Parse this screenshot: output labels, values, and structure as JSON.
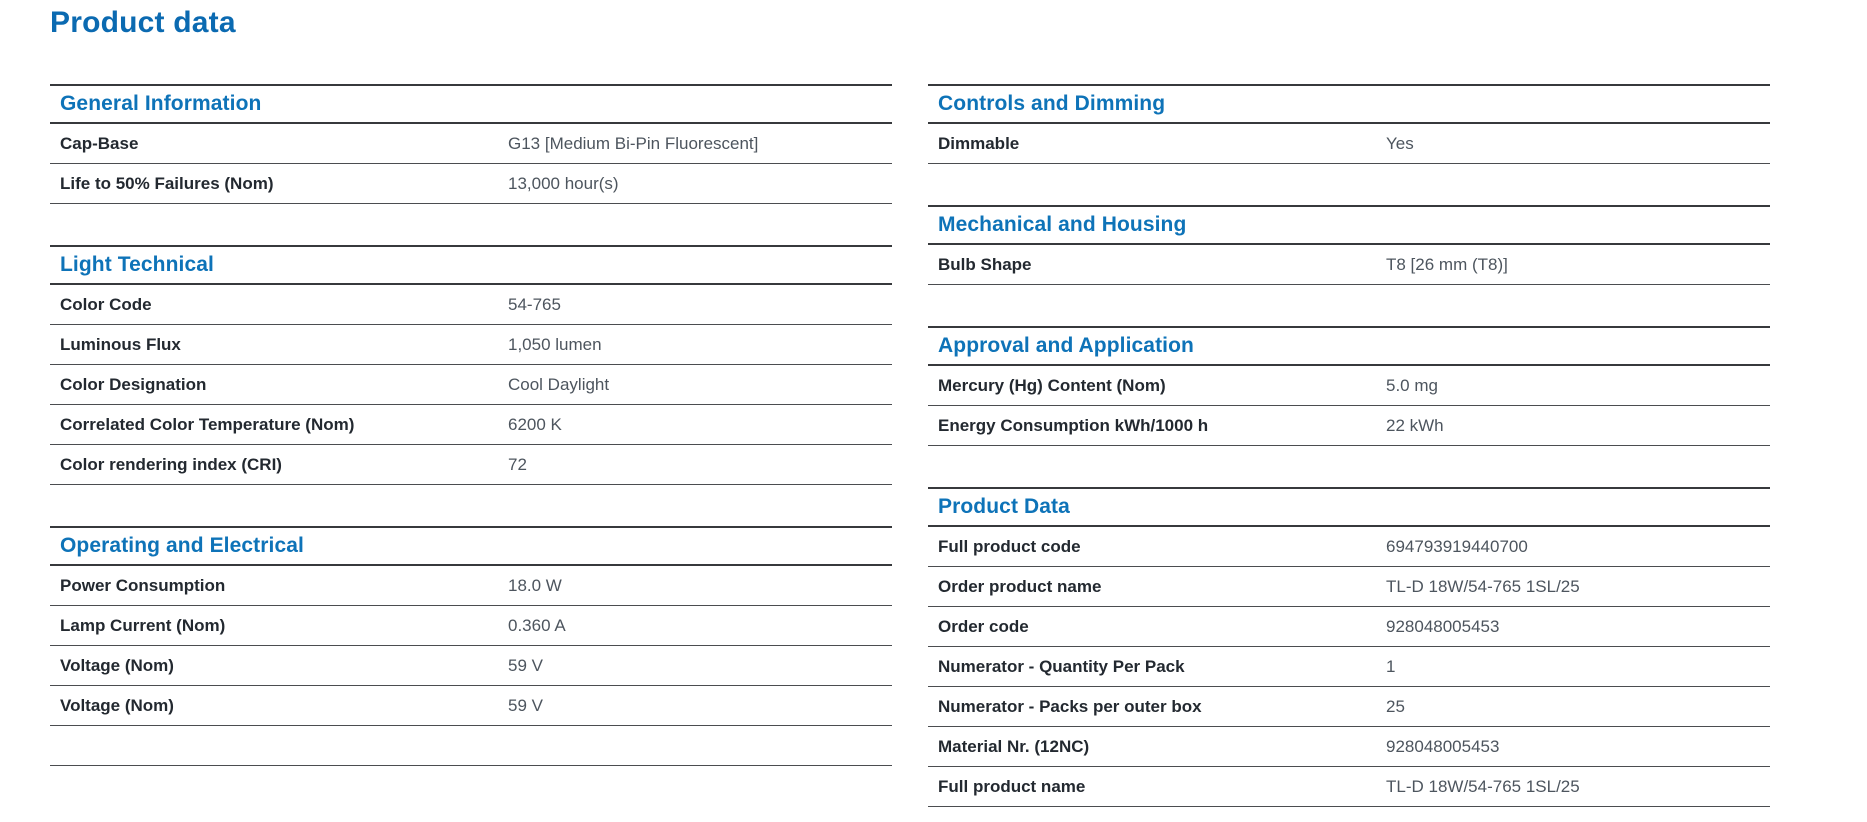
{
  "page_title": "Product data",
  "colors": {
    "title_blue": "#0b6ab1",
    "heading_blue": "#0e73b8",
    "label_dark": "#232930",
    "value_gray": "#4d555e",
    "section_line": "#37393c",
    "row_line": "#4b4d50"
  },
  "columns": [
    {
      "name": "left",
      "sections": [
        {
          "heading": "General Information",
          "rows": [
            {
              "label": "Cap-Base",
              "value": "G13 [Medium Bi-Pin Fluorescent]"
            },
            {
              "label": "Life to 50% Failures (Nom)",
              "value": "13,000 hour(s)"
            }
          ]
        },
        {
          "heading": "Light Technical",
          "rows": [
            {
              "label": "Color Code",
              "value": "54-765"
            },
            {
              "label": "Luminous Flux",
              "value": "1,050 lumen"
            },
            {
              "label": "Color Designation",
              "value": "Cool Daylight"
            },
            {
              "label": "Correlated Color Temperature (Nom)",
              "value": "6200 K"
            },
            {
              "label": "Color rendering index (CRI)",
              "value": "72"
            }
          ]
        },
        {
          "heading": "Operating and Electrical",
          "rows": [
            {
              "label": "Power Consumption",
              "value": "18.0 W"
            },
            {
              "label": "Lamp Current (Nom)",
              "value": "0.360 A"
            },
            {
              "label": "Voltage (Nom)",
              "value": "59 V"
            },
            {
              "label": "Voltage (Nom)",
              "value": "59 V"
            },
            {
              "label": "",
              "value": ""
            }
          ]
        }
      ]
    },
    {
      "name": "right",
      "sections": [
        {
          "heading": "Controls and Dimming",
          "rows": [
            {
              "label": "Dimmable",
              "value": "Yes"
            }
          ]
        },
        {
          "heading": "Mechanical and Housing",
          "rows": [
            {
              "label": "Bulb Shape",
              "value": "T8 [26 mm (T8)]"
            }
          ]
        },
        {
          "heading": "Approval and Application",
          "rows": [
            {
              "label": "Mercury (Hg) Content (Nom)",
              "value": "5.0 mg"
            },
            {
              "label": "Energy Consumption kWh/1000 h",
              "value": "22 kWh"
            }
          ]
        },
        {
          "heading": "Product Data",
          "rows": [
            {
              "label": "Full product code",
              "value": "694793919440700"
            },
            {
              "label": "Order product name",
              "value": "TL-D 18W/54-765 1SL/25"
            },
            {
              "label": "Order code",
              "value": "928048005453"
            },
            {
              "label": "Numerator - Quantity Per Pack",
              "value": "1"
            },
            {
              "label": "Numerator - Packs per outer box",
              "value": "25"
            },
            {
              "label": "Material Nr. (12NC)",
              "value": "928048005453"
            },
            {
              "label": "Full product name",
              "value": "TL-D 18W/54-765 1SL/25"
            }
          ]
        }
      ]
    }
  ]
}
